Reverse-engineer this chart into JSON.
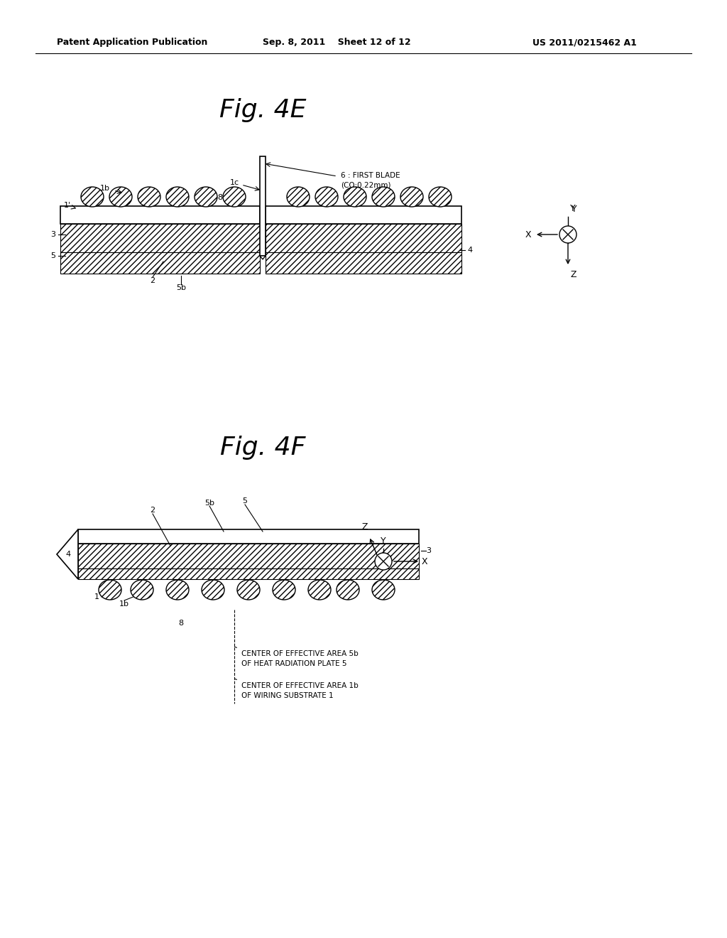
{
  "bg_color": "#ffffff",
  "header_line1": "Patent Application Publication",
  "header_line2": "Sep. 8, 2011   Sheet 12 of 12",
  "header_line3": "US 2011/0215462 A1",
  "fig4E_title": "Fig. 4E",
  "fig4F_title": "Fig. 4F",
  "blade_label": "6 : FIRST BLADE\n(CO:0.22mm)",
  "center_5b_label": "CENTER OF EFFECTIVE AREA 5b\nOF HEAT RADIATION PLATE 5",
  "center_1b_label": "CENTER OF EFFECTIVE AREA 1b\nOF WIRING SUBSTRATE 1"
}
